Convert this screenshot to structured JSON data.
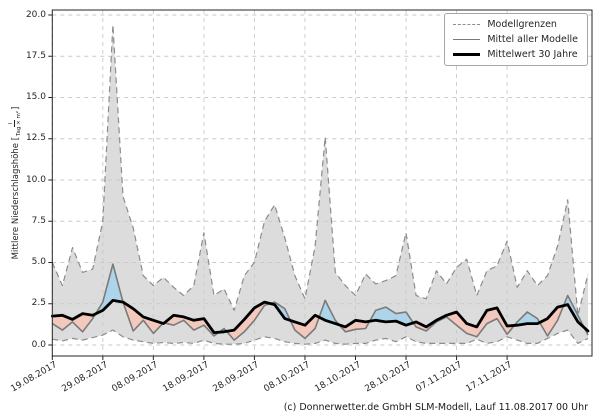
{
  "figure": {
    "copyright": "(c) Donnerwetter.de GmbH SLM-Modell, Lauf 11.08.2017 00 Uhr"
  },
  "legend": {
    "position": "upper-right",
    "entries": [
      {
        "label": "Modellgrenzen",
        "style": "dashed-gray"
      },
      {
        "label": "Mittel aller Modelle",
        "style": "solid-gray"
      },
      {
        "label": "Mittelwert 30 Jahre",
        "style": "solid-black-thick"
      }
    ]
  },
  "ylabel": {
    "prefix": "Mittlere Niederschlagshöhe [",
    "fraction_numerator": "l",
    "fraction_denominator": "Tag × m²",
    "suffix": "]"
  },
  "chart_data": {
    "type": "line",
    "title": "",
    "xlabel": "",
    "ylabel": "Mittlere Niederschlagshöhe [l / (Tag × m²)]",
    "grid": true,
    "x_unit": "days since 19.08.2017",
    "x_tick_days": [
      0,
      10,
      20,
      30,
      40,
      50,
      60,
      70,
      80,
      90
    ],
    "x_tick_labels": [
      "19.08.2017",
      "29.08.2017",
      "08.09.2017",
      "18.09.2017",
      "28.09.2017",
      "08.10.2017",
      "18.10.2017",
      "28.10.2017",
      "07.11.2017",
      "17.11.2017"
    ],
    "y_ticks": [
      0.0,
      2.5,
      5.0,
      7.5,
      10.0,
      12.5,
      15.0,
      17.5,
      20.0
    ],
    "y_tick_labels": [
      "0.0",
      "2.5",
      "5.0",
      "7.5",
      "10.0",
      "12.5",
      "15.0",
      "17.5",
      "20.0"
    ],
    "xlim": [
      0,
      106.8
    ],
    "ylim": [
      -0.67,
      20.3
    ],
    "days": [
      0,
      2,
      4,
      6,
      8,
      10,
      12,
      14,
      16,
      18,
      20,
      22,
      24,
      26,
      28,
      30,
      32,
      34,
      36,
      38,
      40,
      42,
      44,
      46,
      48,
      50,
      52,
      54,
      56,
      58,
      60,
      62,
      64,
      66,
      68,
      70,
      72,
      74,
      76,
      78,
      80,
      82,
      84,
      86,
      88,
      90,
      92,
      94,
      96,
      98,
      100,
      102,
      104,
      106
    ],
    "series": [
      {
        "name": "Modellgrenzen (obere Grenze)",
        "role": "upper_bound",
        "line": "dashed",
        "color": "#8c8c8c",
        "values": [
          5.0,
          3.6,
          5.9,
          4.4,
          4.6,
          7.5,
          19.4,
          9.0,
          7.1,
          4.2,
          3.6,
          4.1,
          3.5,
          3.0,
          3.6,
          6.8,
          3.0,
          3.4,
          2.1,
          4.2,
          5.0,
          7.5,
          8.5,
          6.5,
          4.2,
          2.8,
          6.0,
          12.6,
          4.4,
          3.6,
          3.0,
          4.3,
          3.7,
          3.9,
          4.2,
          6.8,
          3.0,
          2.8,
          4.5,
          3.7,
          4.7,
          5.2,
          3.0,
          4.5,
          4.8,
          6.3,
          3.5,
          4.5,
          3.6,
          4.2,
          6.0,
          8.8,
          1.8,
          4.3
        ]
      },
      {
        "name": "Modellgrenzen (untere Grenze)",
        "role": "lower_bound",
        "line": "dashed",
        "color": "#8c8c8c",
        "values": [
          0.35,
          0.25,
          0.4,
          0.3,
          0.45,
          0.6,
          0.9,
          0.5,
          0.3,
          0.2,
          0.1,
          0.15,
          0.1,
          0.15,
          0.1,
          0.3,
          0.1,
          0.05,
          0.05,
          0.1,
          0.3,
          0.5,
          0.4,
          0.2,
          0.1,
          0.05,
          0.1,
          0.3,
          0.1,
          0.05,
          0.1,
          0.1,
          0.3,
          0.4,
          0.2,
          0.5,
          0.2,
          0.1,
          0.1,
          0.1,
          0.1,
          0.1,
          0.35,
          0.1,
          0.2,
          0.5,
          0.3,
          0.1,
          0.1,
          0.4,
          0.7,
          0.9,
          0.1,
          0.4
        ]
      },
      {
        "name": "Mittel aller Modelle",
        "role": "model_mean",
        "line": "solid",
        "color": "#7a7a7a",
        "values": [
          1.3,
          0.9,
          1.4,
          0.8,
          1.6,
          2.6,
          4.9,
          2.6,
          0.85,
          1.5,
          0.7,
          1.35,
          1.2,
          1.5,
          0.9,
          1.2,
          0.55,
          1.0,
          0.3,
          0.8,
          1.5,
          2.4,
          2.6,
          2.2,
          0.9,
          0.4,
          1.0,
          2.7,
          1.5,
          0.8,
          0.95,
          1.0,
          2.1,
          2.3,
          1.9,
          2.0,
          1.1,
          0.85,
          1.4,
          1.7,
          1.2,
          0.7,
          0.5,
          1.3,
          1.6,
          0.65,
          1.4,
          2.0,
          1.6,
          0.55,
          1.5,
          3.0,
          1.8,
          0.6
        ]
      },
      {
        "name": "Mittelwert 30 Jahre",
        "role": "mean_30_years",
        "line": "solid-thick",
        "color": "#000000",
        "values": [
          1.75,
          1.8,
          1.55,
          1.9,
          1.8,
          2.1,
          2.7,
          2.6,
          2.2,
          1.7,
          1.5,
          1.3,
          1.8,
          1.7,
          1.5,
          1.6,
          0.75,
          0.8,
          0.9,
          1.55,
          2.25,
          2.6,
          2.45,
          1.6,
          1.4,
          1.2,
          1.8,
          1.5,
          1.3,
          1.1,
          1.5,
          1.4,
          1.5,
          1.4,
          1.45,
          1.2,
          1.4,
          1.1,
          1.5,
          1.8,
          2.0,
          1.3,
          1.1,
          2.1,
          2.25,
          1.15,
          1.2,
          1.3,
          1.3,
          1.6,
          2.3,
          2.45,
          1.4,
          0.85
        ]
      }
    ],
    "colors": {
      "band_fill": "#dcdcdc",
      "above_mean_fill": "#aed4ea",
      "below_mean_fill": "#f3c9bd",
      "grid": "#c9c9c9"
    }
  }
}
